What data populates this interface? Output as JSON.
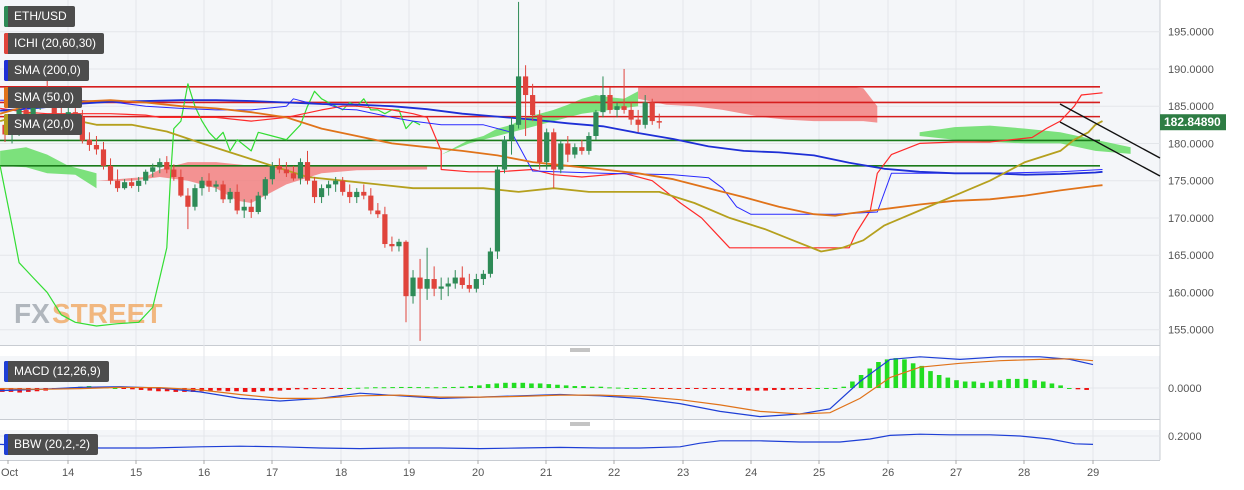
{
  "symbol": "ETH/USD",
  "current_price": "182.84890",
  "colors": {
    "bull": "#2e8b57",
    "bear": "#e0443c",
    "price_tag": "#2e7d44",
    "sma200": "#1e2fd6",
    "sma50": "#e0731a",
    "sma20": "#b5a01e",
    "ichi_tenkan": "#ff2a2a",
    "ichi_kijun": "#2a2aff",
    "ichi_chikou": "#33dd33",
    "cloud_bull": "#66dd66",
    "cloud_bear": "#f28080",
    "macd_line": "#1e3fd6",
    "signal_line": "#e0731a",
    "hist_pos": "#22dd22",
    "hist_neg": "#ee1111",
    "bbw_line": "#1e3fd6"
  },
  "indicators": [
    {
      "label": "ICHI (20,60,30)",
      "color": "#e0443c"
    },
    {
      "label": "SMA (200,0)",
      "color": "#1e2fd6"
    },
    {
      "label": "SMA (50,0)",
      "color": "#e0731a"
    },
    {
      "label": "SMA (20,0)",
      "color": "#b5a01e"
    }
  ],
  "watermark": {
    "part1": "FX",
    "part2": "STREET"
  },
  "macd": {
    "label": "MACD (12,26,9)",
    "yticks": [
      "0.0000"
    ]
  },
  "bbw": {
    "label": "BBW (20,2,-2)",
    "yticks": [
      "0.2000"
    ]
  },
  "chart_data": {
    "type": "candlestick",
    "x_tick_labels": [
      "Oct",
      "14",
      "15",
      "16",
      "17",
      "18",
      "19",
      "20",
      "21",
      "22",
      "23",
      "24",
      "25",
      "26",
      "27",
      "28",
      "29"
    ],
    "y_tick_labels": [
      "195.0000",
      "190.0000",
      "185.0000",
      "180.0000",
      "175.0000",
      "170.0000",
      "165.0000",
      "160.0000",
      "155.0000"
    ],
    "ylim": [
      153,
      199
    ],
    "horizontal_levels": {
      "resistance": [
        187.6,
        185.5,
        183.6
      ],
      "support": [
        180.4,
        177.0
      ]
    },
    "candles": [
      [
        0.0,
        182.5,
        183.8,
        180.2,
        181.2
      ],
      [
        0.5,
        181.2,
        182.6,
        180.0,
        182.0
      ],
      [
        1.0,
        182.0,
        185.5,
        181.0,
        184.5
      ],
      [
        1.5,
        184.5,
        185.8,
        182.5,
        183.0
      ],
      [
        2.0,
        183.0,
        186.5,
        182.0,
        185.5
      ],
      [
        2.5,
        185.5,
        187.5,
        184.5,
        186.8
      ],
      [
        3.0,
        186.8,
        188.4,
        185.0,
        186.0
      ],
      [
        3.5,
        186.0,
        187.0,
        183.5,
        184.0
      ],
      [
        4.0,
        184.0,
        185.5,
        182.0,
        183.2
      ],
      [
        4.5,
        183.2,
        185.0,
        182.5,
        184.2
      ],
      [
        5.0,
        184.2,
        185.5,
        183.0,
        183.5
      ],
      [
        5.5,
        183.5,
        184.5,
        180.0,
        180.4
      ],
      [
        6.0,
        180.5,
        181.5,
        179.0,
        179.8
      ],
      [
        6.5,
        179.8,
        181.0,
        178.5,
        179.2
      ],
      [
        7.0,
        179.2,
        180.2,
        176.5,
        177.0
      ],
      [
        7.5,
        177.0,
        178.0,
        174.5,
        175.0
      ],
      [
        8.0,
        175.0,
        176.5,
        173.5,
        174.0
      ],
      [
        8.5,
        174.0,
        175.2,
        173.8,
        174.8
      ],
      [
        9.0,
        174.8,
        175.3,
        174.0,
        174.3
      ],
      [
        9.5,
        174.3,
        175.5,
        173.5,
        175.0
      ],
      [
        10.0,
        175.0,
        176.5,
        174.5,
        176.2
      ],
      [
        10.5,
        176.2,
        177.3,
        175.5,
        176.8
      ],
      [
        11.0,
        176.8,
        178.0,
        176.0,
        177.5
      ],
      [
        11.5,
        177.5,
        178.3,
        176.0,
        176.5
      ],
      [
        12.0,
        176.5,
        177.2,
        175.0,
        175.5
      ],
      [
        12.5,
        175.5,
        176.5,
        172.8,
        173.0
      ],
      [
        13.0,
        173.0,
        174.0,
        168.5,
        171.5
      ],
      [
        13.5,
        171.5,
        174.5,
        171.0,
        174.0
      ],
      [
        14.0,
        174.0,
        175.5,
        173.0,
        175.0
      ],
      [
        14.5,
        175.0,
        176.0,
        173.5,
        174.2
      ],
      [
        15.0,
        174.2,
        175.0,
        173.5,
        174.5
      ],
      [
        15.5,
        174.5,
        175.0,
        172.0,
        172.5
      ],
      [
        16.0,
        172.5,
        174.0,
        172.0,
        173.5
      ],
      [
        16.5,
        173.5,
        174.5,
        170.5,
        171.0
      ],
      [
        17.0,
        171.0,
        172.5,
        170.0,
        171.5
      ],
      [
        17.5,
        171.5,
        172.5,
        170.0,
        170.8
      ],
      [
        18.0,
        170.8,
        173.5,
        170.5,
        173.0
      ],
      [
        18.5,
        173.0,
        175.5,
        172.5,
        175.2
      ],
      [
        19.0,
        175.2,
        177.5,
        174.5,
        177.0
      ],
      [
        19.5,
        177.0,
        178.0,
        176.0,
        176.5
      ],
      [
        20.0,
        176.5,
        177.5,
        175.5,
        176.0
      ],
      [
        20.5,
        176.0,
        177.0,
        175.0,
        175.3
      ],
      [
        21.0,
        175.3,
        178.0,
        174.5,
        177.5
      ],
      [
        21.5,
        177.5,
        179.0,
        174.5,
        175.0
      ],
      [
        22.0,
        175.0,
        175.5,
        172.0,
        172.8
      ],
      [
        22.5,
        172.8,
        174.5,
        172.0,
        174.0
      ],
      [
        23.0,
        174.0,
        175.0,
        173.0,
        174.5
      ],
      [
        23.5,
        174.5,
        175.5,
        173.5,
        175.0
      ],
      [
        24.0,
        175.0,
        175.5,
        173.0,
        173.5
      ],
      [
        24.5,
        173.5,
        174.5,
        172.0,
        172.8
      ],
      [
        25.0,
        172.8,
        174.0,
        172.0,
        173.5
      ],
      [
        25.5,
        173.5,
        174.5,
        172.5,
        173.0
      ],
      [
        26.0,
        173.0,
        174.0,
        170.5,
        171.0
      ],
      [
        26.5,
        171.0,
        172.0,
        170.0,
        170.5
      ],
      [
        27.0,
        170.5,
        171.5,
        166.0,
        166.5
      ],
      [
        27.5,
        166.5,
        167.5,
        165.5,
        166.2
      ],
      [
        28.0,
        166.2,
        167.2,
        165.5,
        166.8
      ],
      [
        28.5,
        166.8,
        167.0,
        156.0,
        159.5
      ],
      [
        29.0,
        159.5,
        163.0,
        158.5,
        162.0
      ],
      [
        29.5,
        162.0,
        164.5,
        153.5,
        160.5
      ],
      [
        30.0,
        160.5,
        166.0,
        159.0,
        161.8
      ],
      [
        30.5,
        161.8,
        163.5,
        159.5,
        160.5
      ],
      [
        31.0,
        160.5,
        162.0,
        159.0,
        160.8
      ],
      [
        31.5,
        160.8,
        162.0,
        159.5,
        161.2
      ],
      [
        32.0,
        161.2,
        163.0,
        160.5,
        162.0
      ],
      [
        32.5,
        162.0,
        163.5,
        160.5,
        161.0
      ],
      [
        33.0,
        161.0,
        162.5,
        160.0,
        160.5
      ],
      [
        33.5,
        160.5,
        162.5,
        160.0,
        161.8
      ],
      [
        34.0,
        161.8,
        163.0,
        161.0,
        162.5
      ],
      [
        34.5,
        162.5,
        166.0,
        162.0,
        165.5
      ],
      [
        35.0,
        165.5,
        177.0,
        164.5,
        176.5
      ],
      [
        35.5,
        176.5,
        181.0,
        176.0,
        180.5
      ],
      [
        36.0,
        180.5,
        183.5,
        178.5,
        182.5
      ],
      [
        36.5,
        182.5,
        199.0,
        182.0,
        189.0
      ],
      [
        37.0,
        189.0,
        190.5,
        181.0,
        186.5
      ],
      [
        37.5,
        186.5,
        188.0,
        183.0,
        183.8
      ],
      [
        38.0,
        183.8,
        184.5,
        176.5,
        177.5
      ],
      [
        38.5,
        177.5,
        182.0,
        176.5,
        181.5
      ],
      [
        39.0,
        181.5,
        182.0,
        174.0,
        176.5
      ],
      [
        39.5,
        176.5,
        180.5,
        176.0,
        180.0
      ],
      [
        40.0,
        180.0,
        181.0,
        177.5,
        178.5
      ],
      [
        40.5,
        178.5,
        180.0,
        178.0,
        179.5
      ],
      [
        41.0,
        179.5,
        180.5,
        178.5,
        179.0
      ],
      [
        41.5,
        179.0,
        181.5,
        178.5,
        181.0
      ],
      [
        42.0,
        181.0,
        184.5,
        180.5,
        184.2
      ],
      [
        42.5,
        184.2,
        189.0,
        183.5,
        186.5
      ],
      [
        43.0,
        186.5,
        187.5,
        184.0,
        184.5
      ],
      [
        43.5,
        184.5,
        185.5,
        183.5,
        185.0
      ],
      [
        44.0,
        185.0,
        190.0,
        184.0,
        184.5
      ],
      [
        44.5,
        184.5,
        185.5,
        182.5,
        183.2
      ],
      [
        45.0,
        183.2,
        184.5,
        181.5,
        182.5
      ],
      [
        45.5,
        182.5,
        186.5,
        182.0,
        185.5
      ],
      [
        46.0,
        185.5,
        186.0,
        182.5,
        183.0
      ],
      [
        46.5,
        183.0,
        184.0,
        182.0,
        182.8
      ]
    ]
  }
}
